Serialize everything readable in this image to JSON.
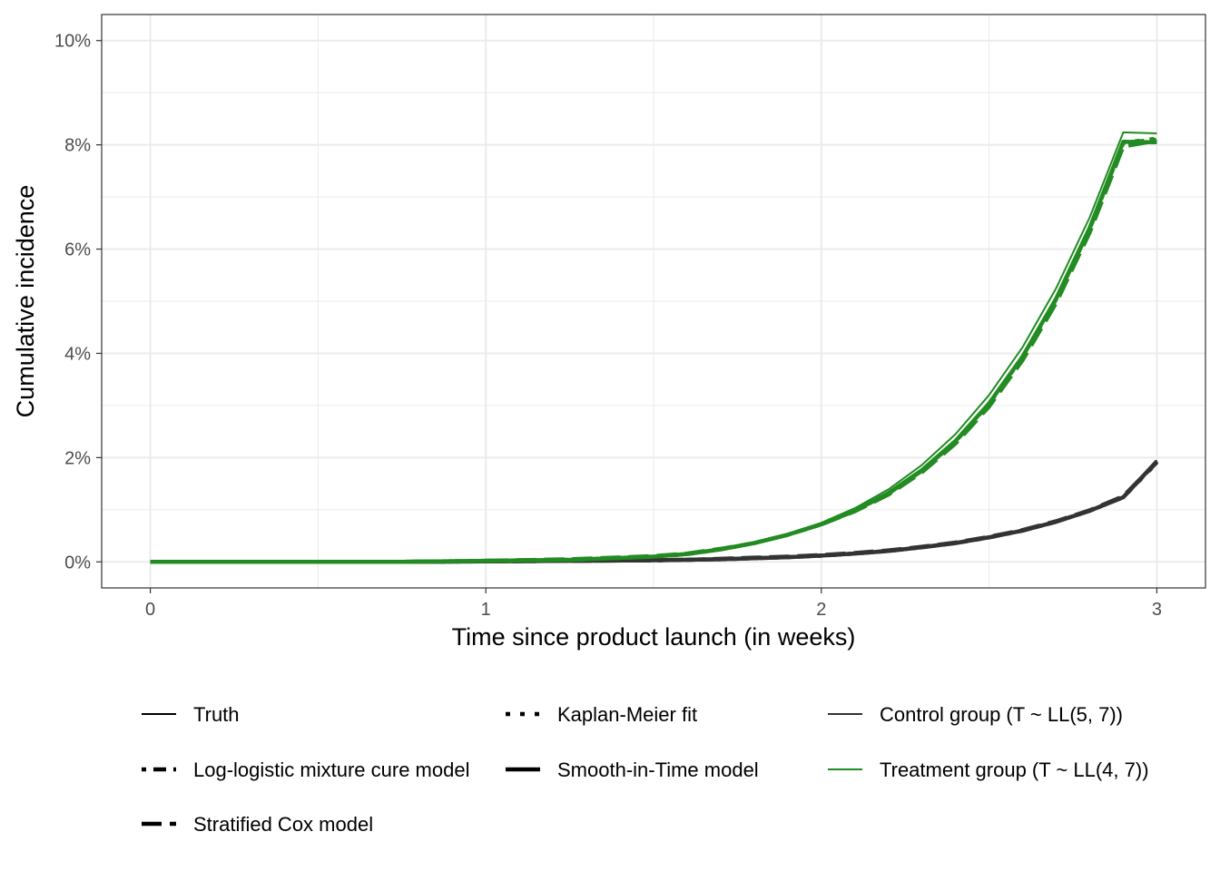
{
  "chart_data": {
    "type": "line",
    "xlabel": "Time since product launch (in weeks)",
    "ylabel": "Cumulative incidence",
    "xlim": [
      -0.145,
      3.145
    ],
    "ylim": [
      -0.005,
      0.105
    ],
    "x_ticks": [
      0,
      1,
      2,
      3
    ],
    "x_tick_labels": [
      "0",
      "1",
      "2",
      "3"
    ],
    "y_ticks": [
      0,
      0.02,
      0.04,
      0.06,
      0.08,
      0.1
    ],
    "y_tick_labels": [
      "0%",
      "2%",
      "4%",
      "6%",
      "8%",
      "10%"
    ],
    "grid": true,
    "legend_position": "bottom",
    "x": [
      0,
      0.25,
      0.5,
      0.75,
      1.0,
      1.25,
      1.5,
      1.6,
      1.7,
      1.8,
      1.9,
      2.0,
      2.1,
      2.2,
      2.3,
      2.4,
      2.5,
      2.6,
      2.7,
      2.8,
      2.9,
      3.0
    ],
    "groups": [
      {
        "name": "Control group (T ~ LL(5, 7))",
        "color": "#333333",
        "key": "control"
      },
      {
        "name": "Treatment group (T ~ LL(4, 7))",
        "color": "#228b22",
        "key": "treatment"
      }
    ],
    "models": [
      {
        "name": "Truth",
        "linetype": "solid-thin",
        "key": "truth"
      },
      {
        "name": "Log-logistic mixture cure model",
        "linetype": "dotted-wide",
        "key": "llmc"
      },
      {
        "name": "Stratified Cox model",
        "linetype": "longdash",
        "key": "cox"
      },
      {
        "name": "Kaplan-Meier fit",
        "linetype": "dotted",
        "key": "km"
      },
      {
        "name": "Smooth-in-Time model",
        "linetype": "solid-thick",
        "key": "sit"
      }
    ],
    "series": [
      {
        "group": "control",
        "model": "truth",
        "values": [
          0,
          0,
          0,
          0.0,
          0.0001,
          0.0002,
          0.0003,
          0.0004,
          0.0005,
          0.0007,
          0.0009,
          0.0012,
          0.0016,
          0.0021,
          0.0028,
          0.0036,
          0.0047,
          0.006,
          0.0077,
          0.0098,
          0.0124,
          0.0195
        ]
      },
      {
        "group": "control",
        "model": "llmc",
        "values": [
          0,
          0,
          0,
          0.0,
          0.0001,
          0.0002,
          0.0003,
          0.0004,
          0.0005,
          0.0007,
          0.0009,
          0.0012,
          0.0016,
          0.0021,
          0.0028,
          0.0036,
          0.0047,
          0.006,
          0.0077,
          0.0098,
          0.0124,
          0.0192
        ]
      },
      {
        "group": "control",
        "model": "cox",
        "values": [
          0,
          0,
          0,
          0.0,
          0.0001,
          0.0002,
          0.0003,
          0.0004,
          0.0006,
          0.0008,
          0.001,
          0.0013,
          0.0017,
          0.0022,
          0.0029,
          0.0037,
          0.0048,
          0.0061,
          0.0078,
          0.0099,
          0.0126,
          0.0191
        ]
      },
      {
        "group": "control",
        "model": "km",
        "values": [
          0,
          0,
          0,
          0.0,
          0.0001,
          0.0002,
          0.0003,
          0.0004,
          0.0005,
          0.0007,
          0.0009,
          0.0012,
          0.0016,
          0.0021,
          0.0028,
          0.0036,
          0.0047,
          0.006,
          0.0077,
          0.0098,
          0.0124,
          0.019
        ]
      },
      {
        "group": "control",
        "model": "sit",
        "values": [
          0,
          0,
          0,
          0.0,
          0.0001,
          0.0002,
          0.0003,
          0.0004,
          0.0005,
          0.0007,
          0.0009,
          0.0012,
          0.0016,
          0.0021,
          0.0028,
          0.0036,
          0.0047,
          0.006,
          0.0077,
          0.0098,
          0.0124,
          0.0193
        ]
      },
      {
        "group": "treatment",
        "model": "truth",
        "values": [
          0,
          0,
          0,
          0.0,
          0.0002,
          0.0004,
          0.001,
          0.0016,
          0.0025,
          0.0037,
          0.0054,
          0.0075,
          0.0103,
          0.0139,
          0.0186,
          0.0245,
          0.032,
          0.0412,
          0.0525,
          0.0661,
          0.0824,
          0.0822
        ]
      },
      {
        "group": "treatment",
        "model": "llmc",
        "values": [
          0,
          0,
          0,
          0.0,
          0.0002,
          0.0004,
          0.001,
          0.0015,
          0.0024,
          0.0036,
          0.0052,
          0.0072,
          0.0098,
          0.0131,
          0.0175,
          0.0231,
          0.0303,
          0.0393,
          0.0504,
          0.0639,
          0.0804,
          0.081
        ]
      },
      {
        "group": "treatment",
        "model": "cox",
        "values": [
          0,
          0,
          0,
          0.0,
          0.0002,
          0.0005,
          0.0011,
          0.0016,
          0.0025,
          0.0036,
          0.0052,
          0.0072,
          0.0097,
          0.0129,
          0.0172,
          0.0227,
          0.0298,
          0.0387,
          0.0497,
          0.0632,
          0.0797,
          0.0808
        ]
      },
      {
        "group": "treatment",
        "model": "km",
        "values": [
          0,
          0,
          0,
          0.0,
          0.0002,
          0.0004,
          0.001,
          0.0015,
          0.0024,
          0.0036,
          0.0052,
          0.0072,
          0.0098,
          0.0131,
          0.0175,
          0.0231,
          0.0303,
          0.0393,
          0.0504,
          0.0639,
          0.0804,
          0.0812
        ]
      },
      {
        "group": "treatment",
        "model": "sit",
        "values": [
          0,
          0,
          0,
          0.0,
          0.0002,
          0.0004,
          0.001,
          0.0015,
          0.0024,
          0.0036,
          0.0052,
          0.0072,
          0.0098,
          0.0132,
          0.0176,
          0.0232,
          0.0304,
          0.0394,
          0.0505,
          0.0641,
          0.0806,
          0.0805
        ]
      }
    ]
  }
}
